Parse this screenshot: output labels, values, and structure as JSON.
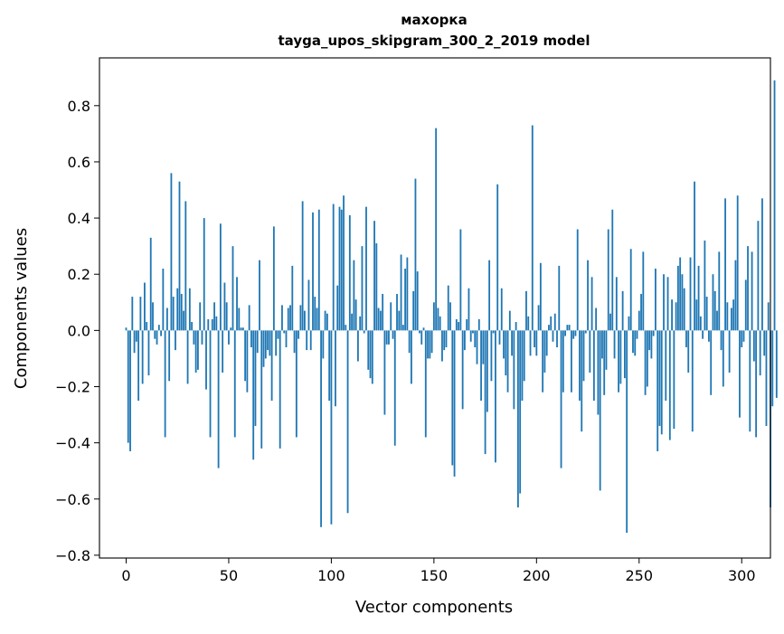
{
  "chart_data": {
    "type": "bar",
    "title": "махорка",
    "subtitle": "tayga_upos_skipgram_300_2_2019 model",
    "xlabel": "Vector components",
    "ylabel": "Components values",
    "xlim": [
      -13,
      314
    ],
    "ylim": [
      -0.81,
      0.97
    ],
    "xticks": [
      0,
      50,
      100,
      150,
      200,
      250,
      300
    ],
    "xtick_labels": [
      "0",
      "50",
      "100",
      "150",
      "200",
      "250",
      "300"
    ],
    "yticks": [
      -0.8,
      -0.6,
      -0.4,
      -0.2,
      0.0,
      0.2,
      0.4,
      0.6,
      0.8
    ],
    "ytick_labels": [
      "−0.8",
      "−0.6",
      "−0.4",
      "−0.2",
      "0.0",
      "0.2",
      "0.4",
      "0.6",
      "0.8"
    ],
    "grid": false,
    "color": "#1f77b4",
    "values": [
      0.01,
      -0.4,
      -0.43,
      0.12,
      -0.08,
      -0.04,
      -0.25,
      0.12,
      -0.19,
      0.17,
      0.03,
      -0.16,
      0.33,
      0.1,
      -0.03,
      -0.05,
      0.02,
      -0.02,
      0.22,
      -0.38,
      0.08,
      -0.18,
      0.56,
      0.12,
      -0.07,
      0.15,
      0.53,
      0.13,
      0.07,
      0.46,
      -0.19,
      0.15,
      0.03,
      -0.05,
      -0.15,
      -0.14,
      0.1,
      -0.05,
      0.4,
      -0.21,
      0.04,
      -0.38,
      0.04,
      0.1,
      0.05,
      -0.49,
      0.38,
      -0.15,
      0.17,
      0.1,
      -0.05,
      0.01,
      0.3,
      -0.38,
      0.19,
      0.08,
      0.01,
      0.01,
      -0.18,
      -0.22,
      0.09,
      -0.06,
      -0.46,
      -0.34,
      -0.08,
      0.25,
      -0.42,
      -0.13,
      -0.1,
      -0.07,
      -0.09,
      -0.25,
      0.37,
      -0.09,
      -0.03,
      -0.42,
      0.09,
      -0.01,
      -0.06,
      0.08,
      0.09,
      0.23,
      -0.08,
      -0.38,
      -0.03,
      0.09,
      0.46,
      0.07,
      -0.07,
      0.18,
      -0.07,
      0.42,
      0.12,
      0.08,
      0.43,
      -0.7,
      -0.1,
      0.07,
      0.06,
      -0.25,
      -0.69,
      0.45,
      -0.27,
      0.16,
      0.44,
      0.43,
      0.48,
      0.02,
      -0.65,
      0.41,
      0.06,
      0.25,
      0.11,
      -0.11,
      0.05,
      0.3,
      -0.01,
      0.44,
      -0.14,
      -0.17,
      -0.19,
      0.39,
      0.31,
      0.08,
      0.07,
      0.13,
      -0.3,
      -0.05,
      -0.05,
      0.1,
      -0.03,
      -0.41,
      0.13,
      0.07,
      0.27,
      0.02,
      0.22,
      0.26,
      -0.08,
      -0.19,
      0.14,
      0.54,
      0.21,
      -0.01,
      -0.05,
      0.01,
      -0.38,
      -0.1,
      -0.1,
      -0.08,
      0.1,
      0.72,
      0.08,
      0.05,
      -0.11,
      -0.07,
      -0.06,
      0.16,
      0.1,
      -0.48,
      -0.52,
      0.04,
      0.03,
      0.36,
      -0.28,
      -0.07,
      0.04,
      0.15,
      -0.04,
      -0.01,
      -0.06,
      -0.12,
      0.04,
      -0.25,
      -0.12,
      -0.44,
      -0.29,
      0.25,
      -0.18,
      -0.01,
      -0.47,
      0.52,
      -0.05,
      0.15,
      -0.1,
      -0.16,
      -0.22,
      0.07,
      -0.09,
      -0.28,
      0.03,
      -0.63,
      -0.58,
      -0.25,
      -0.18,
      0.14,
      0.05,
      -0.09,
      0.73,
      -0.06,
      -0.09,
      0.09,
      0.24,
      -0.22,
      -0.15,
      -0.09,
      0.02,
      0.05,
      -0.04,
      0.06,
      -0.06,
      0.23,
      -0.49,
      -0.22,
      -0.02,
      0.02,
      0.02,
      -0.22,
      -0.03,
      -0.02,
      0.36,
      -0.25,
      -0.36,
      -0.18,
      -0.01,
      0.25,
      -0.15,
      0.19,
      -0.25,
      0.08,
      -0.3,
      -0.57,
      -0.1,
      -0.23,
      -0.14,
      0.36,
      0.06,
      0.43,
      -0.1,
      0.19,
      -0.22,
      -0.19,
      0.14,
      -0.17,
      -0.72,
      0.05,
      0.29,
      -0.08,
      -0.09,
      -0.03,
      0.07,
      0.13,
      0.28,
      -0.23,
      -0.2,
      -0.07,
      -0.1,
      -0.02,
      0.22,
      -0.43,
      -0.34,
      -0.37,
      0.2,
      -0.25,
      0.19,
      -0.39,
      0.11,
      -0.35,
      0.1,
      0.23,
      0.26,
      0.2,
      0.15,
      -0.06,
      -0.15,
      0.26,
      -0.36,
      0.53,
      0.11,
      0.23,
      0.05,
      -0.03,
      0.32,
      0.12,
      -0.04,
      -0.23,
      0.2,
      0.14,
      0.07,
      0.28,
      -0.07,
      -0.2,
      0.47,
      0.1,
      -0.15,
      0.08,
      0.11,
      0.25,
      0.48,
      -0.31,
      -0.06,
      -0.04,
      0.18,
      0.3,
      -0.36,
      0.28,
      -0.11,
      -0.38,
      0.39,
      -0.16,
      0.47,
      -0.09,
      -0.34,
      0.1,
      -0.63,
      -0.27,
      0.89,
      -0.24
    ]
  }
}
